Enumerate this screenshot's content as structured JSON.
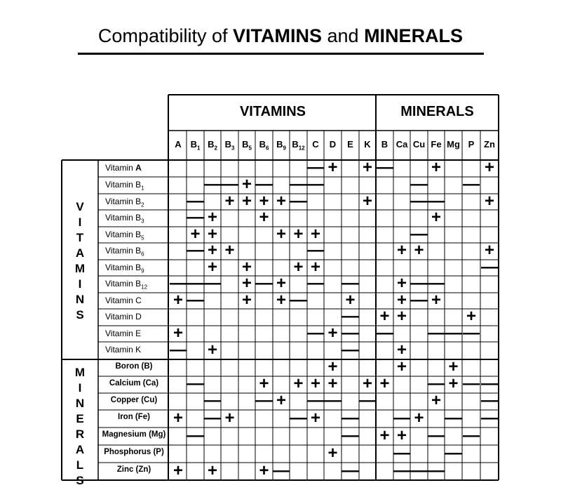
{
  "title": {
    "prefix": "Compatibility of ",
    "vitamins": "VITAMINS",
    "middle": " and ",
    "minerals": "MINERALS"
  },
  "headers": {
    "vitamins": "VITAMINS",
    "minerals": "MINERALS"
  },
  "side": {
    "vitamins": [
      "V",
      "I",
      "T",
      "A",
      "M",
      "I",
      "N",
      "S"
    ],
    "minerals": [
      "M",
      "I",
      "N",
      "E",
      "R",
      "A",
      "L",
      "S"
    ]
  },
  "columns": [
    {
      "main": "A",
      "sub": ""
    },
    {
      "main": "B",
      "sub": "1"
    },
    {
      "main": "B",
      "sub": "2"
    },
    {
      "main": "B",
      "sub": "3"
    },
    {
      "main": "B",
      "sub": "5"
    },
    {
      "main": "B",
      "sub": "6"
    },
    {
      "main": "B",
      "sub": "9"
    },
    {
      "main": "B",
      "sub": "12"
    },
    {
      "main": "C",
      "sub": ""
    },
    {
      "main": "D",
      "sub": ""
    },
    {
      "main": "E",
      "sub": ""
    },
    {
      "main": "K",
      "sub": ""
    },
    {
      "main": "B",
      "sub": ""
    },
    {
      "main": "Ca",
      "sub": ""
    },
    {
      "main": "Cu",
      "sub": ""
    },
    {
      "main": "Fe",
      "sub": ""
    },
    {
      "main": "Mg",
      "sub": ""
    },
    {
      "main": "P",
      "sub": ""
    },
    {
      "main": "Zn",
      "sub": ""
    }
  ],
  "rows": [
    {
      "main": "Vitamin A",
      "bold": "A",
      "sub": "",
      "cells": "........-+.+-..+..+"
    },
    {
      "main": "Vitamin B",
      "bold": "",
      "sub": "1",
      "cells": "..--+-.--.....-..-."
    },
    {
      "main": "Vitamin B",
      "bold": "",
      "sub": "2",
      "cells": ".-.++++-...+..--..+"
    },
    {
      "main": "Vitamin B",
      "bold": "",
      "sub": "3",
      "cells": ".-+..+.........+..."
    },
    {
      "main": "Vitamin B",
      "bold": "",
      "sub": "5",
      "cells": ".++...+++.....-...."
    },
    {
      "main": "Vitamin B",
      "bold": "",
      "sub": "6",
      "cells": ".-++....-....++...+"
    },
    {
      "main": "Vitamin B",
      "bold": "",
      "sub": "9",
      "cells": "..+.+..++.........-"
    },
    {
      "main": "Vitamin B",
      "bold": "",
      "sub": "12",
      "cells": "---.+-+.-.-..+--..."
    },
    {
      "main": "Vitamin C",
      "bold": "",
      "sub": "",
      "cells": "+-..+.+-..+..+-+..."
    },
    {
      "main": "Vitamin D",
      "bold": "",
      "sub": "",
      "cells": "..........-.++...+."
    },
    {
      "main": "Vitamin E",
      "bold": "",
      "sub": "",
      "cells": "+.......-+-.-..---."
    },
    {
      "main": "Vitamin K",
      "bold": "",
      "sub": "",
      "cells": "-.+.......-..+....."
    },
    {
      "main": "Boron (B)",
      "bold": "",
      "sub": "",
      "cells": ".........+...+..+.."
    },
    {
      "main": "Calcium (Ca)",
      "bold": "",
      "sub": "",
      "cells": ".-...+.+++.++..-+--"
    },
    {
      "main": "Copper (Cu)",
      "bold": "",
      "sub": "",
      "cells": "..-..-+.--.-...+..-"
    },
    {
      "main": "Iron (Fe)",
      "bold": "",
      "sub": "",
      "cells": "+.-+...-+.-..-+.-.-"
    },
    {
      "main": "Magnesium (Mg)",
      "bold": "",
      "sub": "",
      "cells": ".-........-.++.-.-."
    },
    {
      "main": "Phosphorus (P)",
      "bold": "",
      "sub": "",
      "cells": ".........+...-..-.."
    },
    {
      "main": "Zinc (Zn)",
      "bold": "",
      "sub": "",
      "cells": "+.+..+-...-..---..."
    }
  ],
  "colors": {
    "ink": "#000000",
    "background": "#ffffff"
  }
}
